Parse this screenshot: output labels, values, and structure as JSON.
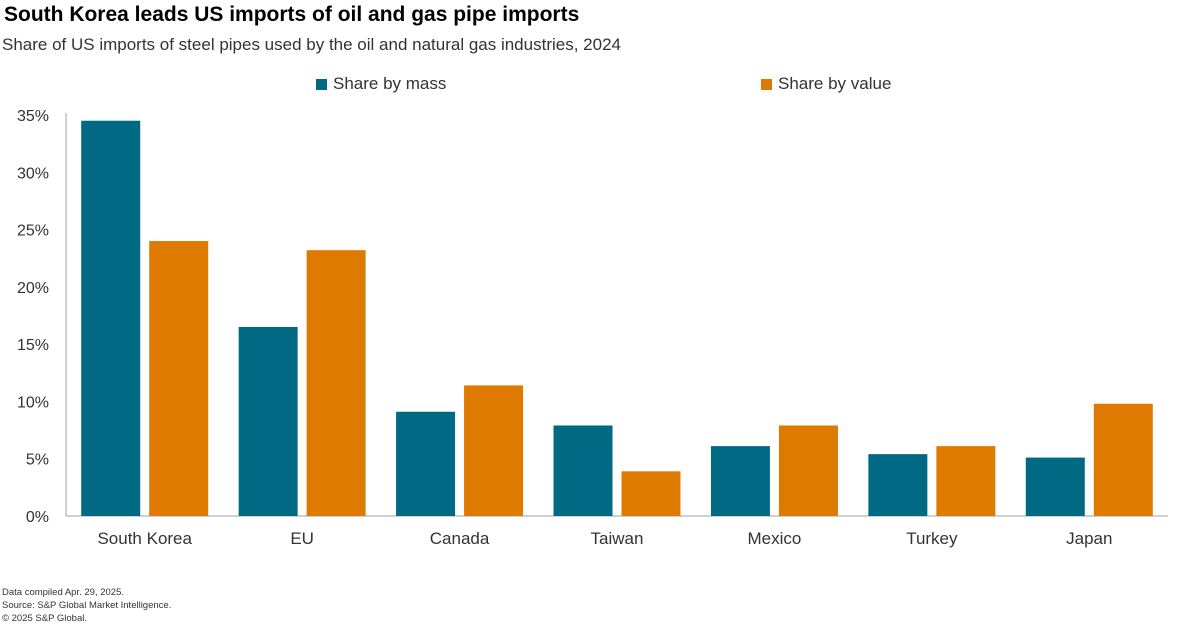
{
  "header": {
    "title": "South Korea leads US imports of oil and gas pipe imports",
    "subtitle": "Share of US imports of steel pipes used by the oil and natural gas industries, 2024"
  },
  "legend": {
    "mass_label": "Share by mass",
    "value_label": "Share by value"
  },
  "colors": {
    "mass": "#006a85",
    "value": "#df7a00",
    "axis": "#a0a0a0",
    "text": "#333333"
  },
  "footnotes": {
    "line1": "Data compiled Apr. 29, 2025.",
    "line2": "Source: S&P Global Market Intelligence.",
    "line3": "© 2025 S&P Global."
  },
  "chart_data": {
    "type": "bar",
    "title": "South Korea leads US imports of oil and gas pipe imports",
    "subtitle": "Share of US imports of steel pipes used by the oil and natural gas industries, 2024",
    "categories": [
      "South Korea",
      "EU",
      "Canada",
      "Taiwan",
      "Mexico",
      "Turkey",
      "Japan"
    ],
    "series": [
      {
        "name": "Share by mass",
        "values": [
          34.5,
          16.5,
          9.1,
          7.9,
          6.1,
          5.4,
          5.1
        ]
      },
      {
        "name": "Share by value",
        "values": [
          24.0,
          23.2,
          11.4,
          3.9,
          7.9,
          6.1,
          9.8
        ]
      }
    ],
    "ylim": [
      0,
      35
    ],
    "yticks": [
      0,
      5,
      10,
      15,
      20,
      25,
      30,
      35
    ],
    "ytick_format": "percent",
    "xlabel": "",
    "ylabel": "",
    "grid": false,
    "legend_position": "top-center"
  }
}
